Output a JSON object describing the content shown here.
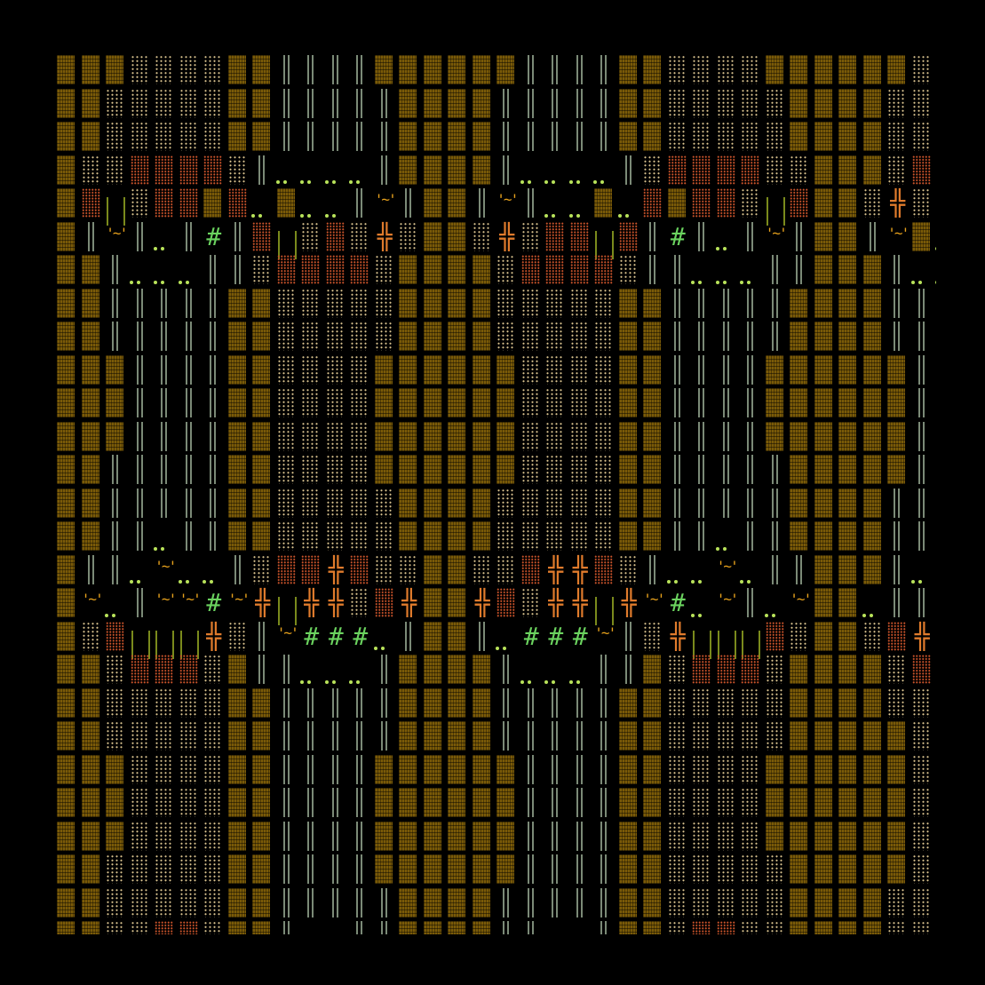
{
  "game": {
    "map_rows": [
      "BBBddddBBWWWWBBBBBBWWWWBBddddBBBBBBdd",
      "BBdddddBBWWWWWBBBBWWWWWBBdddddBBBBddd",
      "BBdddddBBWWWWWBBBBWWWWWBBdddddBBBBddd",
      "BddrrrrdW....WBBBBW....WdrrrrddBBBdrr",
      "BrLdrrBr.B..W~WBBW~W..B.rBrrdLrBBd+dr",
      "BW~W.W#WrLdrd+dBBd+drrLrW#W.W~WBBW~B.",
      "BBW...WWdrrrrdBBBBdrrrrdWW...WWBBBW..",
      "BBWWWWWBBdddddBBBBdddddBBWWWWWBBBBWW ",
      "BBWWWWWBBdddddBBBBdddddBBWWWWWBBBBWW ",
      "BBBWWWWBBddddBBBBBBddddBBWWWWBBBBBBW ",
      "BBBWWWWBBddddBBBBBBddddBBWWWWBBBBBBW ",
      "BBBWWWWBBddddBBBBBBddddBBWWWWBBBBBBW ",
      "BBWWWWWBBddddBBBBBBddddBBWWWWWBBBBBW ",
      "BBWWWWWBBdddddBBBBdddddBBWWWWWBBBBWW ",
      "BBWW.WWBBdddddBBBBdddddBBWW.WWBBBBWW ",
      "BWW.~..Wdrr+rddBBddr++rdW..~.WWBBBW.~",
      "B~.W~~#~+L++dr+BB+rd++L+~#.~W.~BB.WW~",
      "BdrLLL+dW~###.WBBW.###~Wd+LLLrdBBdr+L",
      "BBdrrrdBWW...WBBBBW...WWBdrrrdBBBBdrr",
      "BBdddddBBWWWWWBBBBWWWWWBBdddddBBBBddd",
      "BBdddddBBWWWWWBBBBWWWWWBBdddddBBBBBdd",
      "BBBddddBBWWWWBBBBBBWWWWBBddddBBBBBBdd",
      "BBBddddBBWWWWBBBBBBWWWWBBddddBBBBBBdd",
      "BBBddddBBWWWWBBBBBBWWWWBBddddBBBBBBdd",
      "BBdddddBBWWWWBBBBBBWWWWBBdddddBBBBBdd",
      "BBdddddBBWWWWWBBBBWWWWWBBdddddBBBBddd",
      "BBddrrdBBW  WWBBBBWW  WBBdrrddBBBBddr"
    ],
    "legend": {
      "B": {
        "tile": "brown-rock-block",
        "color": "#7a5a08"
      },
      "d": {
        "tile": "sand-floor-tile",
        "color": "#d9c28e"
      },
      "r": {
        "tile": "red-ore-tile",
        "color": "#c9532a"
      },
      "W": {
        "tile": "stone-wall-double-bar",
        "color": "#7b8a77"
      },
      ".": {
        "tile": "floor-dots",
        "color": "#b9e35a"
      },
      "L": {
        "tile": "olive-channel",
        "color": "#7a8a1c"
      },
      "~": {
        "tile": "bridge-tilde",
        "glyph": "'~'",
        "color": "#e8a21c"
      },
      "#": {
        "tile": "green-hash",
        "glyph": "#",
        "color": "#6bd35f"
      },
      "+": {
        "tile": "orange-cross",
        "glyph": "╬",
        "color": "#e07b2c"
      },
      " ": {
        "tile": "empty"
      }
    }
  }
}
